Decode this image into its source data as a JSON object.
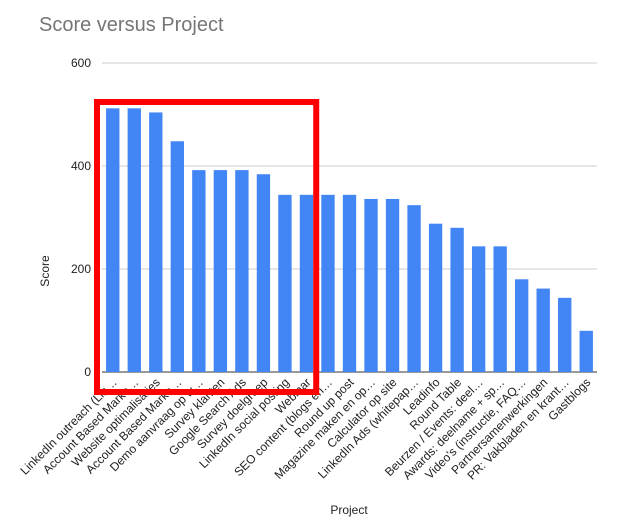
{
  "chart_data": {
    "type": "bar",
    "title": "Score versus Project",
    "xlabel": "Project",
    "ylabel": "Score",
    "ylim": [
      0,
      600
    ],
    "yticks": [
      0,
      200,
      400,
      600
    ],
    "grid": true,
    "categories": [
      "LinkedIn outreach (Lin…",
      "Account Based Marke…",
      "Website optimalisaties",
      "Account Based Marke…",
      "Demo aanvraag op w…",
      "Survey klanten",
      "Google Search Ads",
      "Survey doelgroep",
      "LinkedIn social posting",
      "Webinar",
      "SEO content (blogs en…",
      "Round up post",
      "Magazine maken en op…",
      "Calculator op site",
      "LinkedIn Ads (whitepap…",
      "Leadinfo",
      "Round Table",
      "Beurzen / Events: deel…",
      "Awards: deelname + sp…",
      "Video's (instructie, FAQ…",
      "Partnersamenwerkingen",
      "PR: Vakbladen en krant…",
      "Gastblogs"
    ],
    "series": [
      {
        "values": [
          512,
          512,
          504,
          448,
          392,
          392,
          392,
          384,
          344,
          344,
          344,
          344,
          336,
          336,
          324,
          288,
          280,
          244,
          244,
          180,
          162,
          144,
          80
        ]
      }
    ],
    "colors": {
      "bar": "#4285f4",
      "grid": "#cccccc",
      "text": "#222222",
      "title": "#757575",
      "highlight": "#ff0000"
    },
    "annotations": [
      {
        "type": "rectangle",
        "color": "#ff0000",
        "covers_categories": [
          0,
          9
        ]
      }
    ]
  }
}
